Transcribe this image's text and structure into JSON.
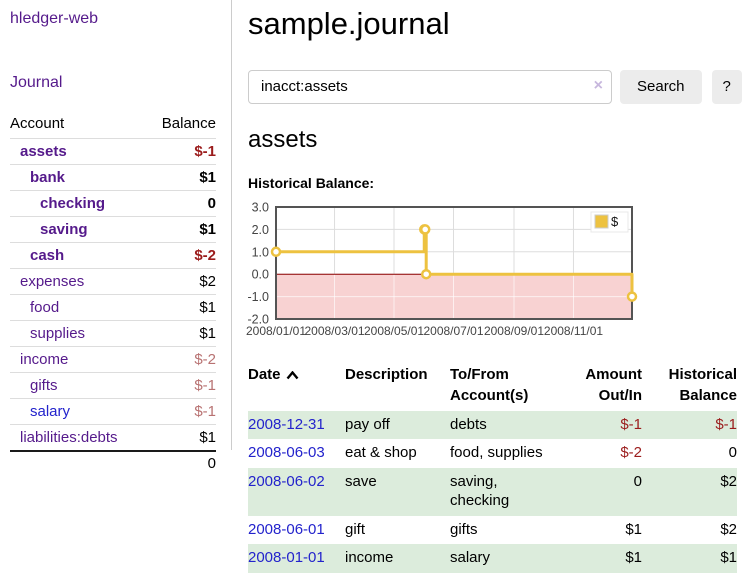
{
  "app_title": "hledger-web",
  "sidebar": {
    "journal_link": "Journal",
    "accounts": {
      "account_header": "Account",
      "balance_header": "Balance",
      "rows": [
        {
          "name": "assets",
          "balance": "$-1",
          "depth": 1,
          "bold": true,
          "negative": true,
          "unvisited": false
        },
        {
          "name": "bank",
          "balance": "$1",
          "depth": 2,
          "bold": true,
          "negative": false,
          "unvisited": false
        },
        {
          "name": "checking",
          "balance": "0",
          "depth": 3,
          "bold": true,
          "negative": false,
          "unvisited": false
        },
        {
          "name": "saving",
          "balance": "$1",
          "depth": 3,
          "bold": true,
          "negative": false,
          "unvisited": false
        },
        {
          "name": "cash",
          "balance": "$-2",
          "depth": 2,
          "bold": true,
          "negative": true,
          "unvisited": false
        },
        {
          "name": "expenses",
          "balance": "$2",
          "depth": 1,
          "bold": false,
          "negative": false,
          "unvisited": false
        },
        {
          "name": "food",
          "balance": "$1",
          "depth": 2,
          "bold": false,
          "negative": false,
          "unvisited": false
        },
        {
          "name": "supplies",
          "balance": "$1",
          "depth": 2,
          "bold": false,
          "negative": false,
          "unvisited": false
        },
        {
          "name": "income",
          "balance": "$-2",
          "depth": 1,
          "bold": false,
          "negative": true,
          "unvisited": false
        },
        {
          "name": "gifts",
          "balance": "$-1",
          "depth": 2,
          "bold": false,
          "negative": true,
          "unvisited": false
        },
        {
          "name": "salary",
          "balance": "$-1",
          "depth": 2,
          "bold": false,
          "negative": true,
          "unvisited": true
        },
        {
          "name": "liabilities:debts",
          "balance": "$1",
          "depth": 1,
          "bold": false,
          "negative": false,
          "unvisited": false
        }
      ],
      "total": "0"
    }
  },
  "main": {
    "title": "sample.journal",
    "search": {
      "value": "inacct:assets",
      "clear_icon": "×",
      "search_button": "Search",
      "help_button": "?"
    },
    "heading": "assets",
    "chart_title": "Historical Balance:"
  },
  "chart_data": {
    "type": "line",
    "step": true,
    "title": "Historical Balance:",
    "legend_label": "$",
    "legend_position": "top-right",
    "x": [
      "2008-01-01",
      "2008-06-01",
      "2008-06-02",
      "2008-06-03",
      "2008-12-31"
    ],
    "series": [
      {
        "name": "$",
        "values": [
          1,
          2,
          2,
          0,
          -1
        ]
      }
    ],
    "xrange": [
      "2008-01-01",
      "2008-12-31"
    ],
    "ylim": [
      -2,
      3
    ],
    "yticks": [
      3,
      2,
      1,
      0,
      -1,
      -2
    ],
    "xtick_labels": [
      "2008/01/01",
      "2008/03/01",
      "2008/05/01",
      "2008/07/01",
      "2008/09/01",
      "2008/11/01"
    ],
    "grid": true,
    "line_color": "#EDC240",
    "zero_line_color": "#8B0000",
    "below_zero_fill": "#F8D2D2"
  },
  "register": {
    "headers": {
      "date": "Date",
      "description": "Description",
      "accounts": "To/From Account(s)",
      "amount": "Amount Out/In",
      "balance": "Historical Balance"
    },
    "rows": [
      {
        "date": "2008-12-31",
        "description": "pay off",
        "accounts": "debts",
        "amount": "$-1",
        "balance": "$-1"
      },
      {
        "date": "2008-06-03",
        "description": "eat & shop",
        "accounts": "food, supplies",
        "amount": "$-2",
        "balance": "0"
      },
      {
        "date": "2008-06-02",
        "description": "save",
        "accounts": "saving, checking",
        "amount": "0",
        "balance": "$2"
      },
      {
        "date": "2008-06-01",
        "description": "gift",
        "accounts": "gifts",
        "amount": "$1",
        "balance": "$2"
      },
      {
        "date": "2008-01-01",
        "description": "income",
        "accounts": "salary",
        "amount": "$1",
        "balance": "$1"
      }
    ]
  }
}
